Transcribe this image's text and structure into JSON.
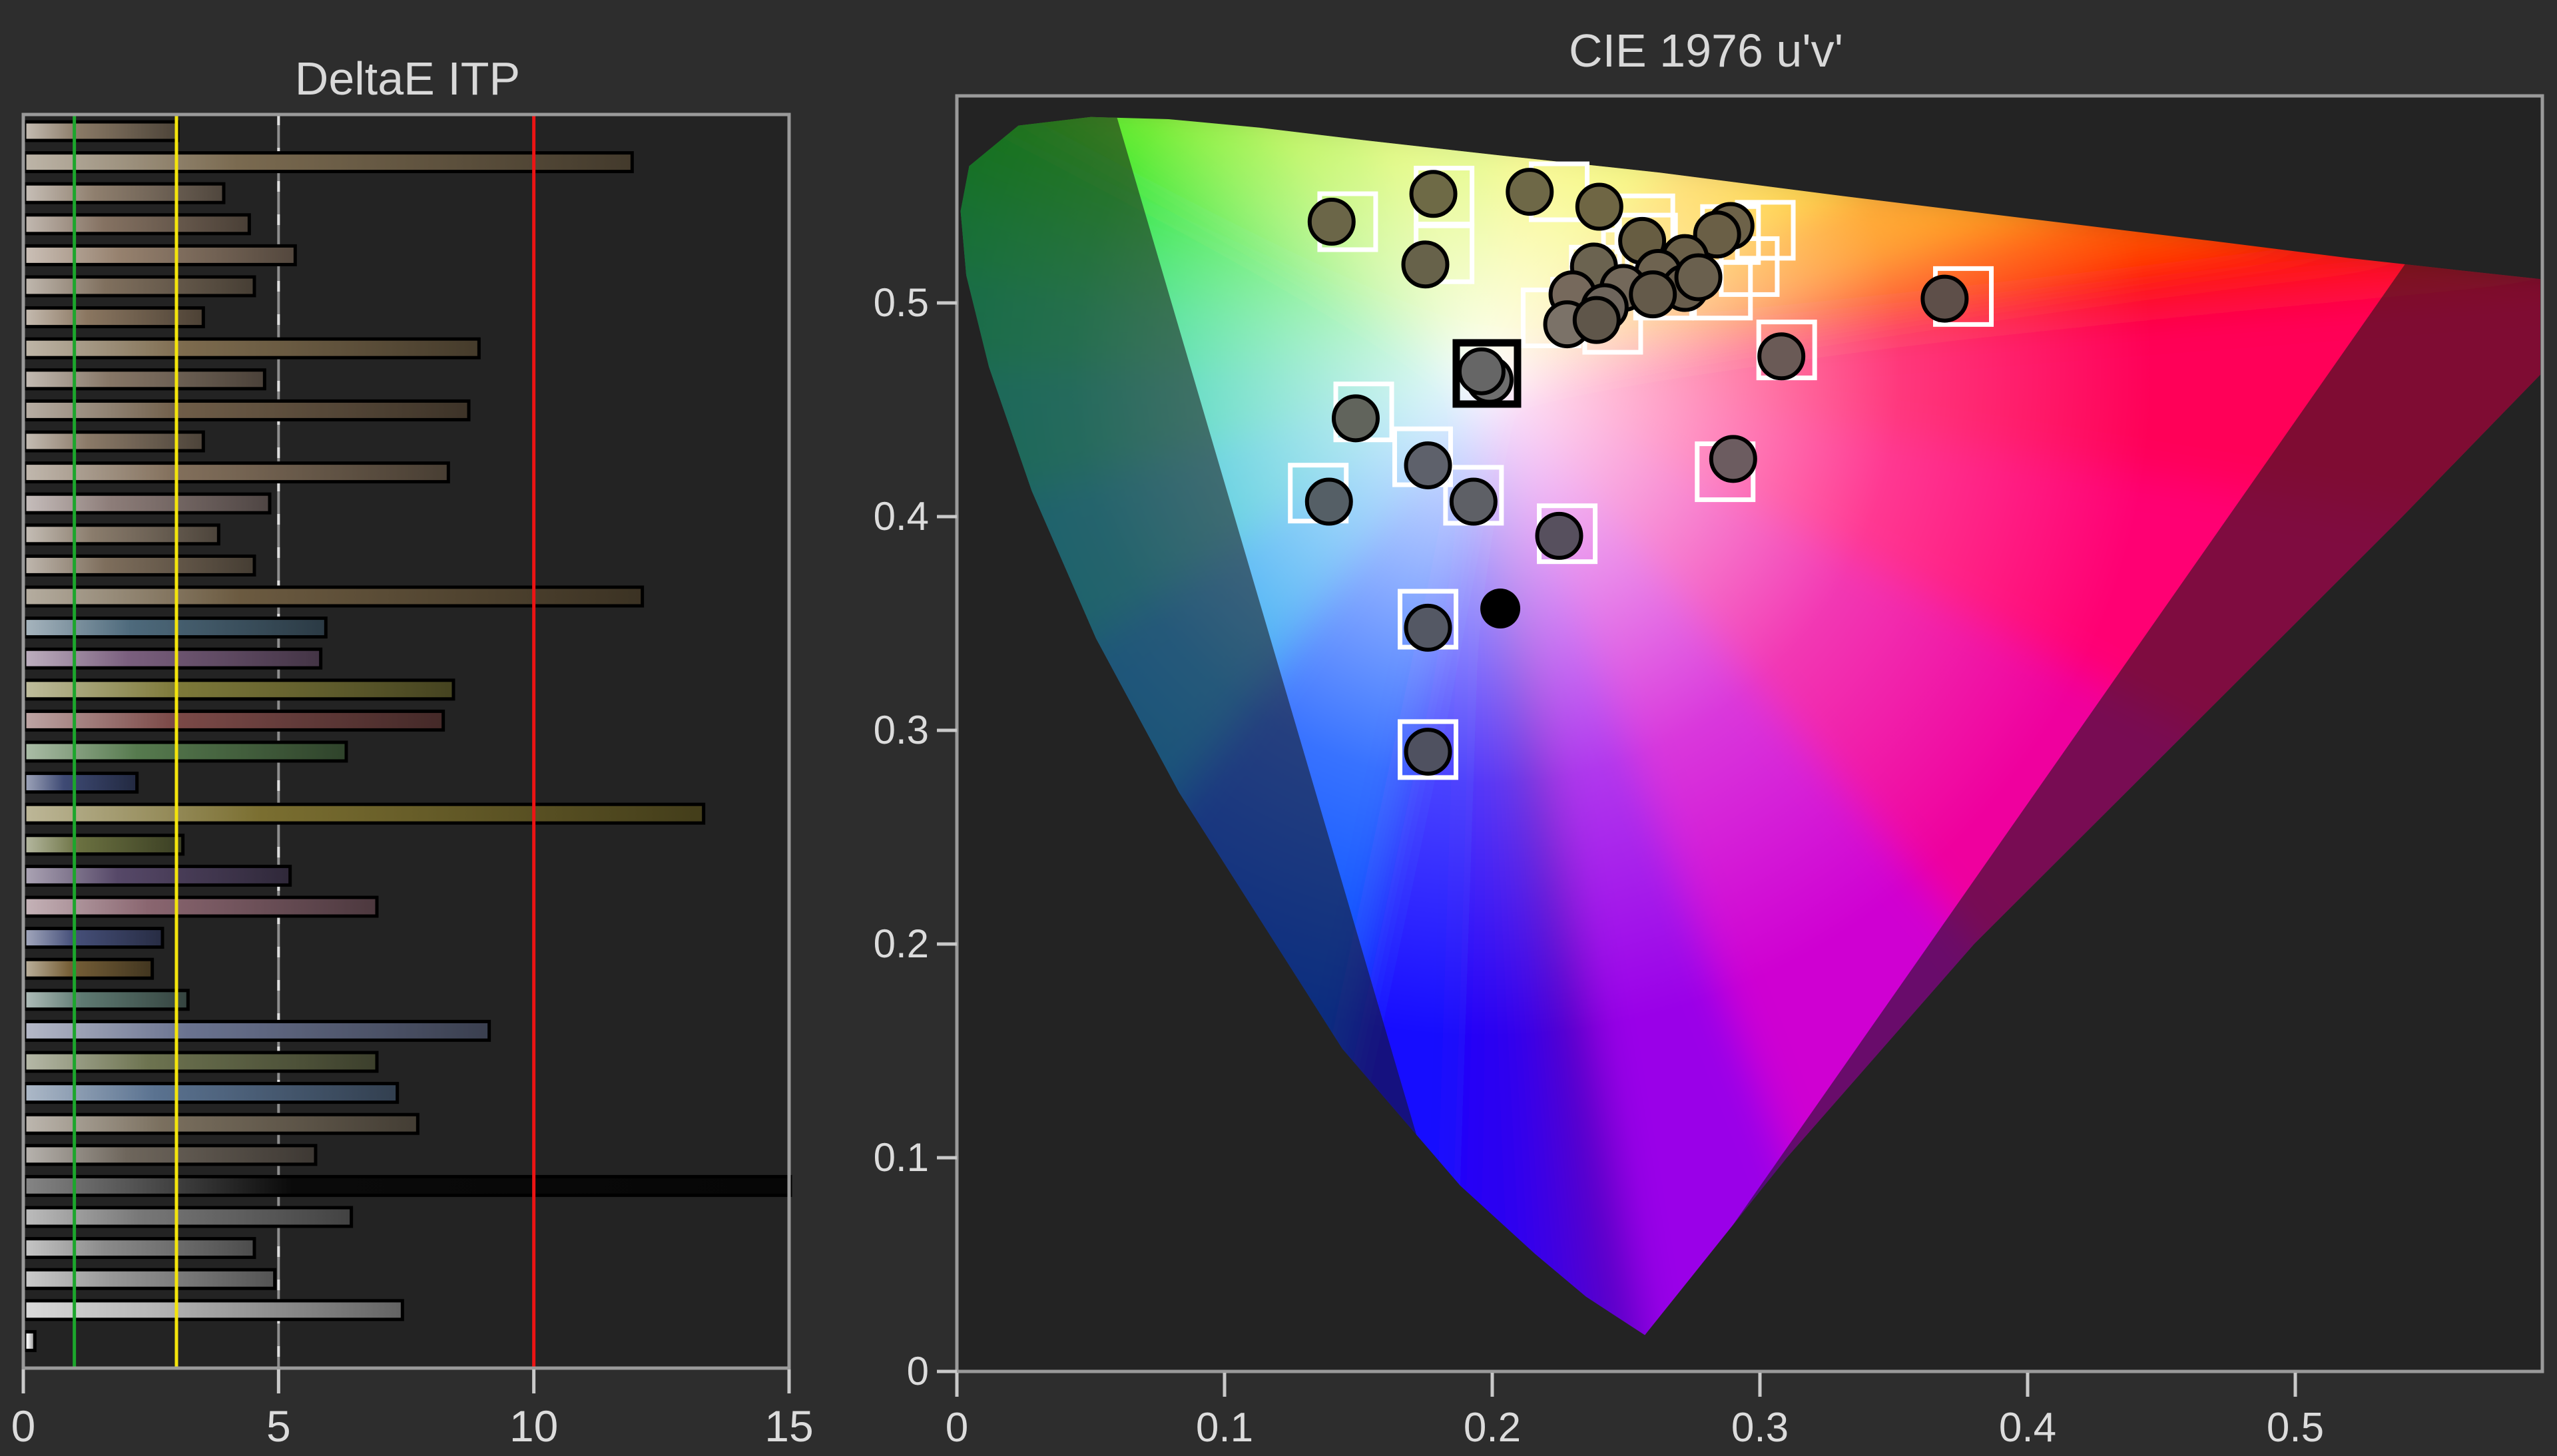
{
  "app": {
    "background": "#2d2d2d",
    "panel_background": "#232323",
    "border_color": "#9a9a9a",
    "text_color": "#dcdcdc"
  },
  "chart_data": [
    {
      "type": "bar",
      "title": "DeltaE ITP",
      "orientation": "horizontal",
      "xlabel": "",
      "ylabel": "",
      "xlim": [
        0,
        15
      ],
      "xticks": [
        "0",
        "5",
        "10",
        "15"
      ],
      "grid_line": {
        "value": 5,
        "color": "#8f8f8f",
        "dash_color": "#dedede"
      },
      "ref_lines": [
        {
          "name": "green-threshold",
          "value": 1,
          "color": "#1ca62c"
        },
        {
          "name": "yellow-threshold",
          "value": 3,
          "color": "#f3e40c"
        },
        {
          "name": "red-threshold",
          "value": 10,
          "color": "#ec1414"
        }
      ],
      "bars": [
        {
          "value": 3.0,
          "color": "#8a7a66"
        },
        {
          "value": 11.9,
          "color": "#7a6a50"
        },
        {
          "value": 3.9,
          "color": "#8f7f6e"
        },
        {
          "value": 4.4,
          "color": "#857262"
        },
        {
          "value": 5.3,
          "color": "#96816e"
        },
        {
          "value": 4.5,
          "color": "#80705e"
        },
        {
          "value": 3.5,
          "color": "#8a7660"
        },
        {
          "value": 8.9,
          "color": "#7d6b4e"
        },
        {
          "value": 4.7,
          "color": "#877767"
        },
        {
          "value": 8.7,
          "color": "#6f5d48"
        },
        {
          "value": 3.5,
          "color": "#8b7a68"
        },
        {
          "value": 8.3,
          "color": "#83705c"
        },
        {
          "value": 4.8,
          "color": "#8d7d79"
        },
        {
          "value": 3.8,
          "color": "#8a7c6c"
        },
        {
          "value": 4.5,
          "color": "#7e6e5c"
        },
        {
          "value": 12.1,
          "color": "#6b5a40"
        },
        {
          "value": 5.9,
          "color": "#4e6a7c"
        },
        {
          "value": 5.8,
          "color": "#7a5f7e"
        },
        {
          "value": 8.4,
          "color": "#7e7a3a"
        },
        {
          "value": 8.2,
          "color": "#7c4a48"
        },
        {
          "value": 6.3,
          "color": "#567a4e"
        },
        {
          "value": 2.2,
          "color": "#3e4a74"
        },
        {
          "value": 13.3,
          "color": "#7a6e30"
        },
        {
          "value": 3.1,
          "color": "#6a7040"
        },
        {
          "value": 5.2,
          "color": "#564868"
        },
        {
          "value": 6.9,
          "color": "#8a6670"
        },
        {
          "value": 2.7,
          "color": "#46507a"
        },
        {
          "value": 2.5,
          "color": "#776038"
        },
        {
          "value": 3.2,
          "color": "#5e7a72"
        },
        {
          "value": 9.1,
          "color": "#6a7390"
        },
        {
          "value": 6.9,
          "color": "#6d7350"
        },
        {
          "value": 7.3,
          "color": "#5a7290"
        },
        {
          "value": 7.7,
          "color": "#7a6f5e"
        },
        {
          "value": 5.7,
          "color": "#6e665c"
        },
        {
          "value": 15.0,
          "color": "#0a0a0a"
        },
        {
          "value": 6.4,
          "color": "#787878"
        },
        {
          "value": 4.5,
          "color": "#8a8a8a"
        },
        {
          "value": 4.9,
          "color": "#979797"
        },
        {
          "value": 7.4,
          "color": "#b4b4b4"
        },
        {
          "value": 0.2,
          "color": "#f2f2f2"
        }
      ]
    },
    {
      "type": "scatter",
      "title": "CIE 1976 u'v'",
      "xlabel": "",
      "ylabel": "",
      "xlim": [
        0,
        0.592
      ],
      "ylim": [
        0,
        0.597
      ],
      "xticks": [
        "0",
        "0.1",
        "0.2",
        "0.3",
        "0.4",
        "0.5"
      ],
      "yticks": [
        "0",
        "0.1",
        "0.2",
        "0.3",
        "0.4",
        "0.5"
      ],
      "white_point": [
        0.198,
        0.468
      ],
      "series": [
        {
          "name": "reference-targets",
          "marker": "square",
          "stroke": "#ffffff",
          "points": [
            [
              0.146,
              0.538
            ],
            [
              0.182,
              0.55
            ],
            [
              0.182,
              0.523
            ],
            [
              0.225,
              0.552
            ],
            [
              0.257,
              0.537
            ],
            [
              0.289,
              0.532
            ],
            [
              0.302,
              0.534
            ],
            [
              0.24,
              0.513
            ],
            [
              0.252,
              0.521
            ],
            [
              0.258,
              0.528
            ],
            [
              0.233,
              0.498
            ],
            [
              0.245,
              0.49
            ],
            [
              0.222,
              0.493
            ],
            [
              0.264,
              0.506
            ],
            [
              0.286,
              0.506
            ],
            [
              0.296,
              0.517
            ],
            [
              0.31,
              0.478
            ],
            [
              0.376,
              0.503
            ],
            [
              0.287,
              0.421
            ],
            [
              0.152,
              0.449
            ],
            [
              0.174,
              0.428
            ],
            [
              0.135,
              0.411
            ],
            [
              0.193,
              0.41
            ],
            [
              0.228,
              0.392
            ],
            [
              0.176,
              0.352
            ],
            [
              0.176,
              0.291
            ]
          ]
        },
        {
          "name": "measured-points",
          "marker": "circle",
          "stroke": "#000000",
          "points": [
            [
              0.14,
              0.538,
              "#6b6648"
            ],
            [
              0.178,
              0.551,
              "#6e6a46"
            ],
            [
              0.175,
              0.518,
              "#67624a"
            ],
            [
              0.214,
              0.552,
              "#6e6847"
            ],
            [
              0.24,
              0.545,
              "#6f6644"
            ],
            [
              0.289,
              0.536,
              "#6d6249"
            ],
            [
              0.284,
              0.532,
              "#6a5f46"
            ],
            [
              0.256,
              0.529,
              "#675d42"
            ],
            [
              0.238,
              0.517,
              "#6b6350"
            ],
            [
              0.272,
              0.521,
              "#6a5f48"
            ],
            [
              0.262,
              0.514,
              "#6e6350"
            ],
            [
              0.249,
              0.507,
              "#73685a"
            ],
            [
              0.272,
              0.507,
              "#685d4c"
            ],
            [
              0.23,
              0.504,
              "#76695c"
            ],
            [
              0.26,
              0.504,
              "#645a4a"
            ],
            [
              0.242,
              0.498,
              "#6e655c"
            ],
            [
              0.228,
              0.49,
              "#7b7268"
            ],
            [
              0.239,
              0.492,
              "#5f564a"
            ],
            [
              0.277,
              0.512,
              "#6a604e"
            ],
            [
              0.308,
              0.475,
              "#6a5a56"
            ],
            [
              0.369,
              0.502,
              "#5e4f49"
            ],
            [
              0.29,
              0.427,
              "#6c5c60"
            ],
            [
              0.149,
              0.446,
              "#61645c"
            ],
            [
              0.176,
              0.424,
              "#5e616b"
            ],
            [
              0.139,
              0.407,
              "#555f66"
            ],
            [
              0.193,
              0.407,
              "#5e6066"
            ],
            [
              0.225,
              0.391,
              "#57505e"
            ],
            [
              0.176,
              0.348,
              "#545864"
            ],
            [
              0.176,
              0.29,
              "#4f5160"
            ],
            [
              0.199,
              0.464,
              "#6e6e6e"
            ],
            [
              0.196,
              0.468,
              "#666666"
            ]
          ]
        },
        {
          "name": "white-point-target",
          "marker": "square",
          "stroke": "#000000",
          "points": [
            [
              0.198,
              0.467
            ]
          ]
        },
        {
          "name": "black-sample",
          "marker": "dot",
          "fill": "#000000",
          "points": [
            [
              0.203,
              0.357
            ]
          ]
        }
      ],
      "spectral_locus": [
        [
          0.257,
          0.017,
          "#5a00c8"
        ],
        [
          0.235,
          0.035,
          "#4000e0"
        ],
        [
          0.216,
          0.055,
          "#2a00f2"
        ],
        [
          0.188,
          0.087,
          "#1410ff"
        ],
        [
          0.144,
          0.151,
          "#004cff"
        ],
        [
          0.083,
          0.271,
          "#0092f0"
        ],
        [
          0.052,
          0.343,
          "#00b2cc"
        ],
        [
          0.028,
          0.412,
          "#00c49e"
        ],
        [
          0.012,
          0.47,
          "#00d074"
        ],
        [
          0.0035,
          0.513,
          "#00d850"
        ],
        [
          0.0014,
          0.543,
          "#00dc30"
        ],
        [
          0.0046,
          0.564,
          "#06e014"
        ],
        [
          0.023,
          0.583,
          "#1ce400"
        ],
        [
          0.05,
          0.587,
          "#46e800"
        ],
        [
          0.079,
          0.586,
          "#70ec00"
        ],
        [
          0.113,
          0.582,
          "#9cf000"
        ],
        [
          0.153,
          0.576,
          "#c6f400"
        ],
        [
          0.203,
          0.569,
          "#eef000"
        ],
        [
          0.2625,
          0.561,
          "#ffc400"
        ],
        [
          0.331,
          0.55,
          "#ff9000"
        ],
        [
          0.403,
          0.539,
          "#ff5400"
        ],
        [
          0.469,
          0.529,
          "#ff2200"
        ],
        [
          0.52,
          0.521,
          "#ff0d12"
        ],
        [
          0.556,
          0.516,
          "#ff0a30"
        ],
        [
          0.6,
          0.51,
          "#ff0548"
        ],
        [
          0.623,
          0.507,
          "#ff0058"
        ],
        [
          0.54,
          0.4,
          "#ff0073"
        ],
        [
          0.46,
          0.3,
          "#ef009e"
        ],
        [
          0.38,
          0.2,
          "#cf00d2"
        ],
        [
          0.31,
          0.1,
          "#9a00e8"
        ]
      ],
      "gamut_dim": {
        "color": "rgba(22,22,22,0.55)",
        "regions": [
          [
            [
              0.052,
              0.62
            ],
            [
              0.193,
              0.02
            ],
            [
              0.19,
              -0.03
            ],
            [
              -0.03,
              -0.03
            ],
            [
              -0.03,
              0.62
            ]
          ],
          [
            [
              0.556,
              0.545
            ],
            [
              0.26,
              0.015
            ],
            [
              0.36,
              -0.04
            ],
            [
              0.76,
              0.4
            ],
            [
              0.7,
              0.545
            ]
          ]
        ]
      }
    }
  ]
}
